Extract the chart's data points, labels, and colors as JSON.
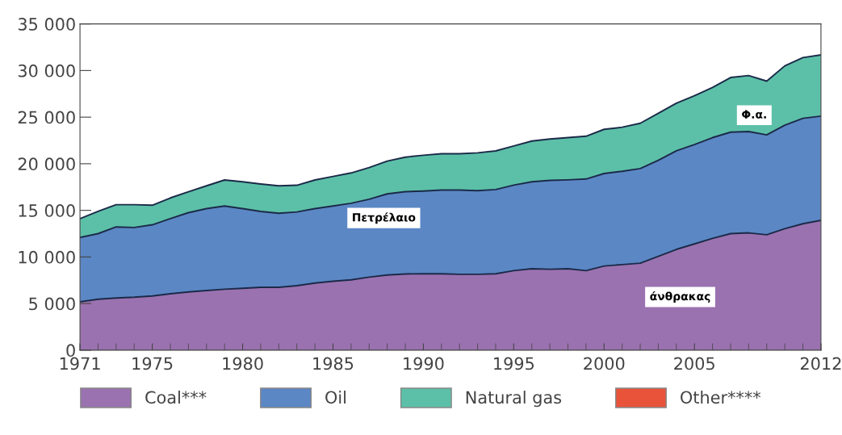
{
  "chart_data": {
    "type": "area",
    "stacked": true,
    "x": [
      1971,
      1972,
      1973,
      1974,
      1975,
      1976,
      1977,
      1978,
      1979,
      1980,
      1981,
      1982,
      1983,
      1984,
      1985,
      1986,
      1987,
      1988,
      1989,
      1990,
      1991,
      1992,
      1993,
      1994,
      1995,
      1996,
      1997,
      1998,
      1999,
      2000,
      2001,
      2002,
      2003,
      2004,
      2005,
      2006,
      2007,
      2008,
      2009,
      2010,
      2011,
      2012
    ],
    "series": [
      {
        "name": "Coal***",
        "color": "#9b72b0",
        "values": [
          5190,
          5470,
          5590,
          5680,
          5820,
          6050,
          6250,
          6400,
          6540,
          6630,
          6740,
          6740,
          6910,
          7200,
          7400,
          7550,
          7840,
          8070,
          8180,
          8200,
          8200,
          8140,
          8140,
          8200,
          8530,
          8730,
          8680,
          8730,
          8530,
          9030,
          9180,
          9330,
          10070,
          10810,
          11400,
          11990,
          12500,
          12580,
          12380,
          13030,
          13560,
          13920
        ]
      },
      {
        "name": "Oil",
        "color": "#5b87c5",
        "values": [
          6910,
          7030,
          7630,
          7480,
          7630,
          8060,
          8500,
          8780,
          8930,
          8550,
          8150,
          7950,
          7920,
          7980,
          8070,
          8210,
          8350,
          8700,
          8820,
          8870,
          8970,
          9030,
          8970,
          9030,
          9180,
          9330,
          9530,
          9540,
          9830,
          9920,
          10010,
          10150,
          10300,
          10570,
          10660,
          10810,
          10890,
          10870,
          10720,
          11100,
          11310,
          11190
        ]
      },
      {
        "name": "Natural gas",
        "color": "#5cc0a8",
        "values": [
          2010,
          2390,
          2390,
          2450,
          2100,
          2220,
          2250,
          2450,
          2790,
          2880,
          2940,
          2940,
          2860,
          3080,
          3170,
          3250,
          3400,
          3510,
          3710,
          3840,
          3910,
          3910,
          4060,
          4150,
          4200,
          4380,
          4440,
          4530,
          4590,
          4740,
          4730,
          4860,
          5040,
          5120,
          5240,
          5390,
          5860,
          6010,
          5770,
          6370,
          6520,
          6570
        ]
      },
      {
        "name": "Other****",
        "color": "#e8533a",
        "values": [
          null,
          null,
          null,
          null,
          null,
          null,
          null,
          null,
          null,
          null,
          null,
          null,
          null,
          null,
          null,
          null,
          null,
          null,
          null,
          null,
          null,
          null,
          null,
          null,
          null,
          null,
          null,
          null,
          null,
          null,
          null,
          null,
          null,
          null,
          null,
          null,
          null,
          null,
          null,
          null,
          null,
          null
        ]
      }
    ],
    "xlim": [
      1971,
      2012
    ],
    "xticks": [
      1971,
      1975,
      1980,
      1985,
      1990,
      1995,
      2000,
      2005,
      2012
    ],
    "ylim": [
      0,
      35000
    ],
    "yticks": [
      {
        "value": 0,
        "label": "0"
      },
      {
        "value": 5000,
        "label": "5 000"
      },
      {
        "value": 10000,
        "label": "10 000"
      },
      {
        "value": 15000,
        "label": "15 000"
      },
      {
        "value": 20000,
        "label": "20 000"
      },
      {
        "value": 25000,
        "label": "25 000"
      },
      {
        "value": 30000,
        "label": "30 000"
      },
      {
        "value": 35000,
        "label": "35 000"
      }
    ],
    "annotations": [
      "Πετρέλαιο",
      "άνθρακας",
      "Φ.α."
    ],
    "legend": "bottom",
    "grid": false
  }
}
